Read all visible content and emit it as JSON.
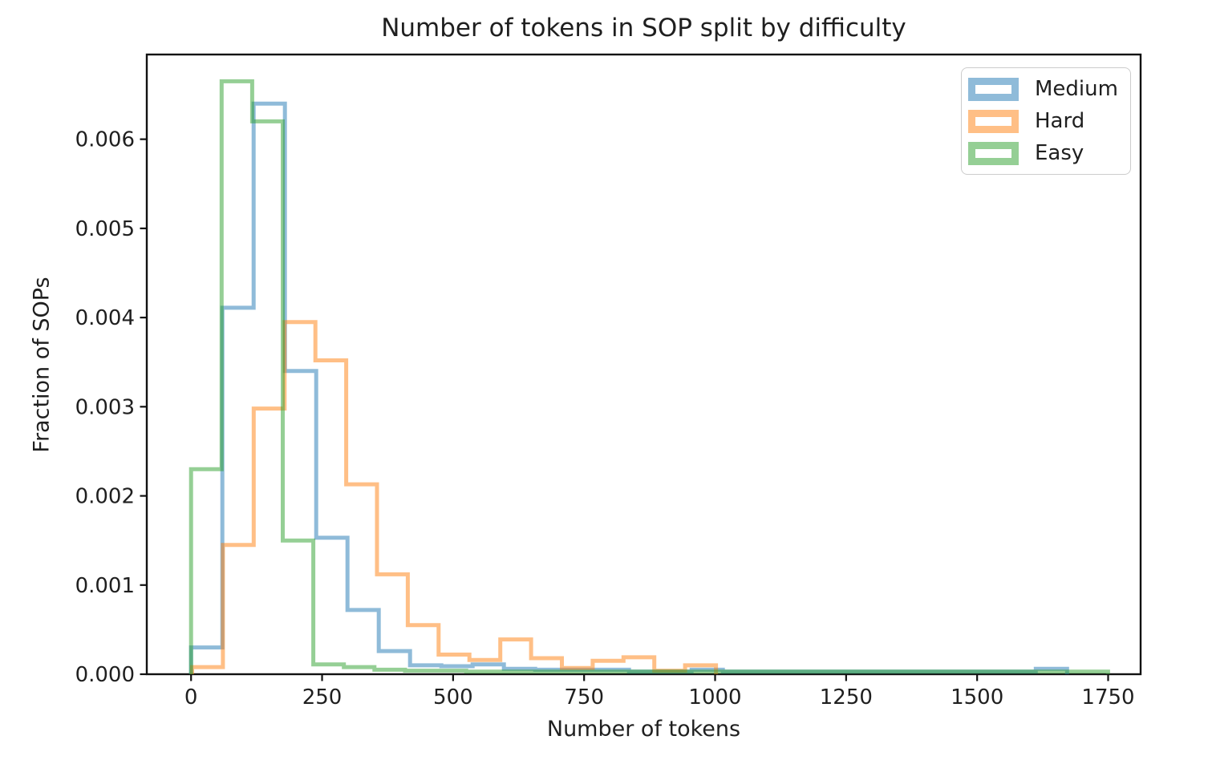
{
  "figure": {
    "title": "Number of tokens in SOP split by difficulty"
  },
  "style": {
    "background": "#ffffff",
    "text_color": "#1f1f1f",
    "axis_color": "#111111",
    "legend_border_color": "#cccccc"
  },
  "chart_data": {
    "type": "histogram-step",
    "title": "Number of tokens in SOP split by difficulty",
    "xlabel": "Number of tokens",
    "ylabel": "Fraction of SOPs",
    "xlim": [
      -84.5,
      1812
    ],
    "ylim": [
      0,
      0.00695
    ],
    "grid": false,
    "legend_position": "upper right",
    "x_ticks": {
      "values": [
        0,
        250,
        500,
        750,
        1000,
        1250,
        1500,
        1750
      ],
      "labels": [
        "0",
        "250",
        "500",
        "750",
        "1000",
        "1250",
        "1500",
        "1750"
      ]
    },
    "y_ticks": {
      "values": [
        0,
        0.001,
        0.002,
        0.003,
        0.004,
        0.005,
        0.006
      ],
      "labels": [
        "0.000",
        "0.001",
        "0.002",
        "0.003",
        "0.004",
        "0.005",
        "0.006"
      ]
    },
    "series": [
      {
        "name": "Medium",
        "color": "#1f77b4",
        "opacity": 0.5,
        "line_width": 5,
        "bin_start": 0,
        "bin_width": 59.7,
        "values": [
          0.0003,
          0.00411,
          0.0064,
          0.0034,
          0.00153,
          0.00072,
          0.00026,
          0.0001,
          9e-05,
          0.00011,
          6e-05,
          5e-05,
          5e-05,
          5e-05,
          3e-05,
          3e-05,
          5e-05,
          3e-05,
          3e-05,
          3e-05,
          3e-05,
          3e-05,
          3e-05,
          3e-05,
          3e-05,
          3e-05,
          3e-05,
          6e-05
        ]
      },
      {
        "name": "Hard",
        "color": "#ff7f0e",
        "opacity": 0.5,
        "line_width": 5,
        "bin_start": 2,
        "bin_width": 58.8,
        "values": [
          8e-05,
          0.00145,
          0.00298,
          0.00395,
          0.00352,
          0.00213,
          0.00112,
          0.00055,
          0.00022,
          0.00016,
          0.00039,
          0.00018,
          7e-05,
          0.00015,
          0.00019,
          4e-05,
          0.0001
        ]
      },
      {
        "name": "Easy",
        "color": "#2ca02c",
        "opacity": 0.5,
        "line_width": 5,
        "bin_start": 0,
        "bin_width": 58.33,
        "values": [
          0.0023,
          0.00665,
          0.0062,
          0.0015,
          0.00011,
          8e-05,
          5e-05,
          4e-05,
          4e-05,
          3e-05,
          3e-05,
          3e-05,
          3e-05,
          3e-05,
          3e-05,
          3e-05,
          3e-05,
          3e-05,
          3e-05,
          3e-05,
          3e-05,
          3e-05,
          3e-05,
          3e-05,
          3e-05,
          3e-05,
          3e-05,
          3e-05,
          3e-05,
          3e-05
        ]
      }
    ]
  },
  "legend": {
    "items": [
      {
        "label": "Medium",
        "swatch_border": "#8fbbd9"
      },
      {
        "label": "Hard",
        "swatch_border": "#ffbf86"
      },
      {
        "label": "Easy",
        "swatch_border": "#95cf95"
      }
    ]
  }
}
